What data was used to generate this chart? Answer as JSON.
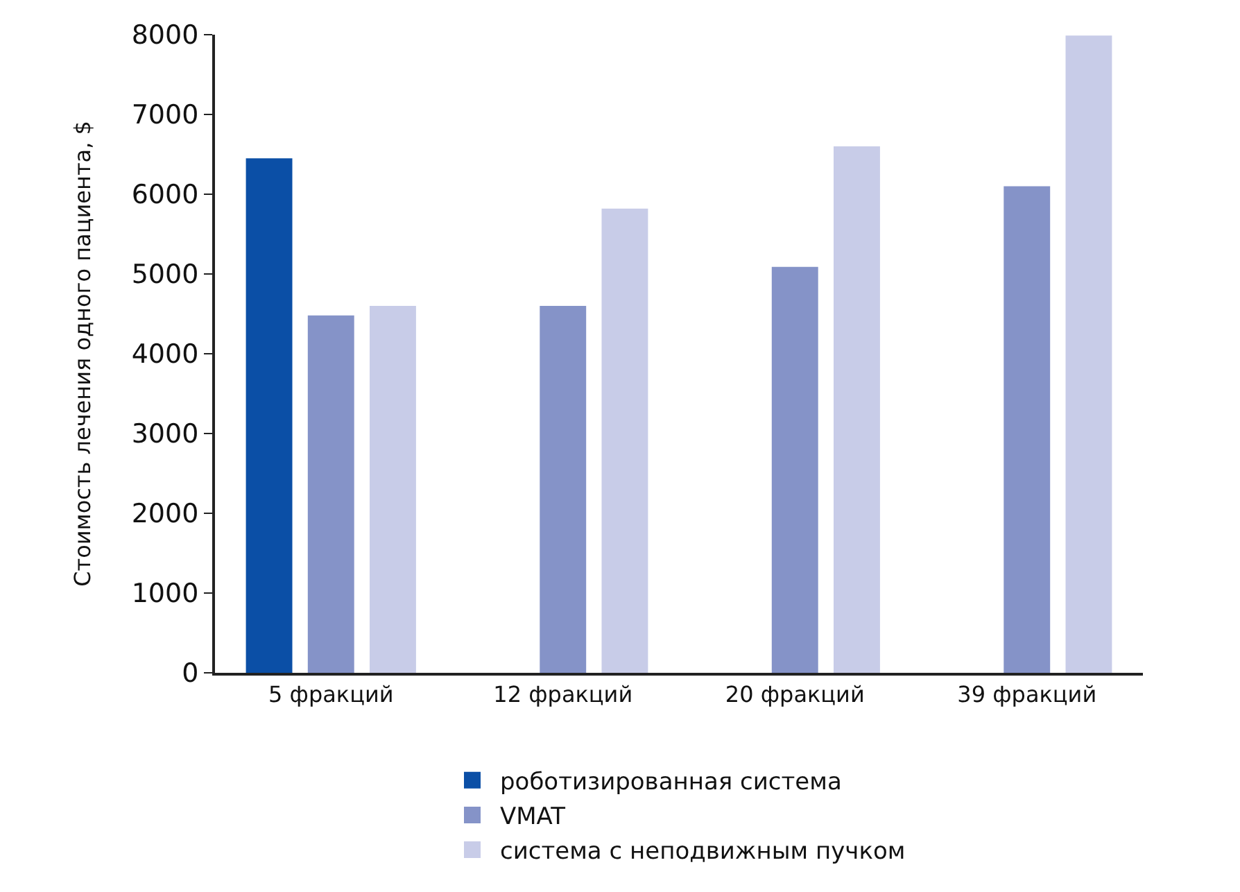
{
  "chart_data": {
    "type": "bar",
    "ylabel": "Стоимость лечения одного пациента, $",
    "categories": [
      "5 фракций",
      "12 фракций",
      "20 фракций",
      "39 фракций"
    ],
    "series": [
      {
        "name": "роботизированная система",
        "color": "#0b4fa6",
        "values": [
          6450,
          null,
          null,
          null
        ]
      },
      {
        "name": "VMAT",
        "color": "#8593c8",
        "values": [
          4480,
          4600,
          5090,
          6100
        ]
      },
      {
        "name": "система с неподвижным пучком",
        "color": "#c8cce8",
        "values": [
          4600,
          5820,
          6600,
          7990
        ]
      }
    ],
    "ylim": [
      0,
      8000
    ],
    "yticks": [
      0,
      1000,
      2000,
      3000,
      4000,
      5000,
      6000,
      7000,
      8000
    ],
    "grid": false,
    "legend": "bottom"
  }
}
